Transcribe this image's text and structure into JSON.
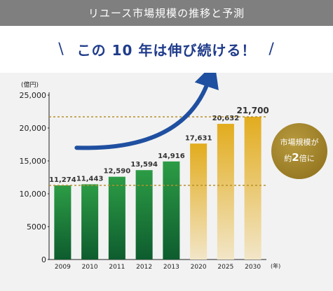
{
  "header": {
    "title": "リユース市場規模の推移と予測"
  },
  "headline": {
    "slash_left": "\\",
    "text": "この 10 年は伸び続ける！",
    "slash_right": "/"
  },
  "badge": {
    "line1": "市場規模が",
    "line2_pre": "約",
    "line2_num": "2",
    "line2_post": "倍に"
  },
  "colors": {
    "header_bg": "#7f7f7f",
    "headline": "#1f3b8a",
    "actual_bar_top": "#2c9c45",
    "actual_bar_bottom": "#0e5c2e",
    "forecast_bar_top": "#e2ac1e",
    "forecast_bar_bottom": "#f2e6c8",
    "guide_line": "#b8902a",
    "arrow": "#1f4fa0"
  },
  "chart_data": {
    "type": "bar",
    "ylabel": "(億円)",
    "xlabel": "(年)",
    "ylim": [
      0,
      25000
    ],
    "yticks": [
      "0",
      "5000",
      "10,000",
      "15,000",
      "20,000",
      "25,000"
    ],
    "ytick_values": [
      0,
      5000,
      10000,
      15000,
      20000,
      25000
    ],
    "categories": [
      "2009",
      "2010",
      "2011",
      "2012",
      "2013",
      "2020",
      "2025",
      "2030"
    ],
    "values": [
      11274,
      11443,
      12590,
      13594,
      14916,
      17631,
      20632,
      21700
    ],
    "value_labels": [
      "11,274",
      "11,443",
      "12,590",
      "13,594",
      "14,916",
      "17,631",
      "20,632",
      "21,700"
    ],
    "kind": [
      "actual",
      "actual",
      "actual",
      "actual",
      "actual",
      "forecast",
      "forecast",
      "forecast"
    ],
    "reference_lines": [
      11274,
      21700
    ]
  }
}
